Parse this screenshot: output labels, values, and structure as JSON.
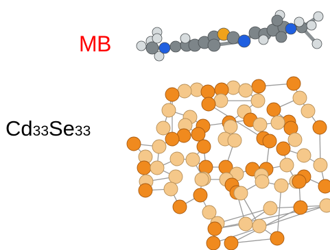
{
  "labels": {
    "mb": "MB",
    "cluster_element_1": "Cd",
    "cluster_count_1": "33",
    "cluster_element_2": "Se",
    "cluster_count_2": "33"
  },
  "colors": {
    "mb_label": "#ff0000",
    "cd_atom": "#f5c88a",
    "se_atom": "#f08a1e",
    "bond": "#9a9a9a",
    "carbon": "#7d8589",
    "hydrogen": "#d7dcde",
    "nitrogen": "#1f5fe0",
    "sulfur": "#f0a21a"
  }
}
